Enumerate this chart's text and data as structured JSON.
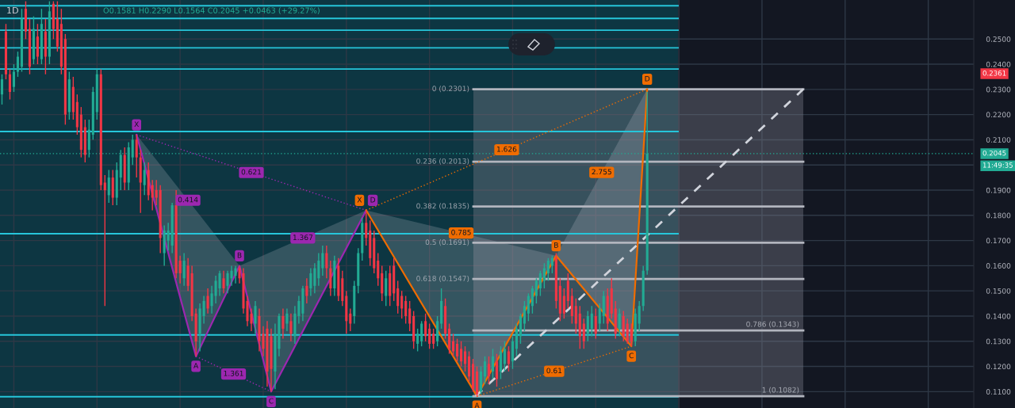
{
  "chart_data": {
    "type": "candlestick",
    "title": "1D",
    "categories": [
      null,
      null,
      null,
      null,
      null,
      null,
      null,
      null,
      null,
      null,
      null,
      null,
      null,
      null,
      null,
      null,
      null,
      null,
      null,
      null,
      null,
      null,
      null,
      null,
      null,
      null,
      null,
      null,
      null,
      null,
      null,
      null,
      null,
      null,
      null,
      null,
      null,
      null,
      null,
      null,
      null,
      null,
      null,
      null,
      null,
      null,
      null,
      null,
      null,
      null,
      null,
      null,
      null,
      null,
      null,
      null,
      null,
      null,
      null,
      null,
      null,
      null,
      null,
      null,
      null,
      null,
      null,
      null,
      null,
      null,
      null,
      null,
      null,
      null,
      null,
      null,
      null,
      null,
      null,
      null,
      null,
      null,
      null,
      null,
      null,
      null,
      null,
      null,
      null,
      null,
      null,
      null,
      null,
      null,
      null,
      null,
      null,
      null,
      null,
      null,
      null,
      null,
      null,
      null,
      null,
      null,
      null,
      null,
      null,
      null,
      null,
      null,
      null,
      null,
      null,
      null,
      null,
      null,
      null,
      null,
      null,
      null,
      null,
      null,
      null,
      null,
      null,
      null,
      null,
      null,
      null,
      null,
      null,
      null,
      null,
      null,
      null,
      null,
      null,
      null,
      null,
      null,
      null,
      null,
      null,
      null,
      null,
      null,
      null,
      null,
      null,
      null,
      null,
      null,
      null,
      null,
      null,
      null,
      null,
      null,
      null,
      null,
      null,
      null,
      null,
      null,
      null,
      null,
      null,
      null,
      null,
      null,
      null,
      null,
      null,
      null,
      null,
      null,
      null,
      null,
      null,
      null,
      null,
      null,
      null,
      null,
      null,
      null,
      null,
      null,
      null,
      null,
      null,
      null,
      null,
      null,
      null,
      null,
      null,
      null,
      null,
      null,
      null,
      null,
      null,
      null,
      null,
      null,
      null,
      null,
      null,
      null,
      null,
      null,
      null,
      null,
      null,
      null,
      null,
      null,
      null,
      null,
      null,
      null,
      null,
      null,
      null,
      null,
      null,
      null,
      null,
      null,
      null,
      null,
      null,
      null,
      null,
      null,
      null,
      null,
      null,
      null,
      null,
      null,
      null,
      null
    ],
    "ohlc": [
      [
        0.228,
        0.236,
        0.224,
        0.234
      ],
      [
        0.253,
        0.256,
        0.234,
        0.236
      ],
      [
        0.236,
        0.238,
        0.226,
        0.229
      ],
      [
        0.231,
        0.24,
        0.229,
        0.237
      ],
      [
        0.237,
        0.245,
        0.235,
        0.243
      ],
      [
        0.239,
        0.262,
        0.237,
        0.258
      ],
      [
        0.262,
        0.265,
        0.25,
        0.253
      ],
      [
        0.254,
        0.258,
        0.236,
        0.239
      ],
      [
        0.242,
        0.259,
        0.24,
        0.254
      ],
      [
        0.251,
        0.256,
        0.24,
        0.243
      ],
      [
        0.242,
        0.262,
        0.24,
        0.256
      ],
      [
        0.253,
        0.258,
        0.236,
        0.243
      ],
      [
        0.243,
        0.265,
        0.24,
        0.261
      ],
      [
        0.264,
        0.265,
        0.25,
        0.254
      ],
      [
        0.258,
        0.265,
        0.245,
        0.247
      ],
      [
        0.256,
        0.262,
        0.236,
        0.239
      ],
      [
        0.25,
        0.252,
        0.216,
        0.22
      ],
      [
        0.221,
        0.237,
        0.218,
        0.234
      ],
      [
        0.231,
        0.235,
        0.218,
        0.221
      ],
      [
        0.225,
        0.228,
        0.212,
        0.215
      ],
      [
        0.22,
        0.223,
        0.203,
        0.206
      ],
      [
        0.215,
        0.218,
        0.201,
        0.204
      ],
      [
        0.206,
        0.218,
        0.203,
        0.214
      ],
      [
        0.212,
        0.231,
        0.21,
        0.229
      ],
      [
        0.221,
        0.238,
        0.218,
        0.236
      ],
      [
        0.236,
        0.238,
        0.19,
        0.192
      ],
      [
        0.193,
        0.196,
        0.144,
        0.19
      ],
      [
        0.188,
        0.198,
        0.185,
        0.195
      ],
      [
        0.195,
        0.198,
        0.184,
        0.187
      ],
      [
        0.187,
        0.201,
        0.184,
        0.198
      ],
      [
        0.195,
        0.206,
        0.19,
        0.204
      ],
      [
        0.204,
        0.207,
        0.19,
        0.193
      ],
      [
        0.193,
        0.209,
        0.19,
        0.207
      ],
      [
        0.203,
        0.212,
        0.2,
        0.21
      ],
      [
        0.21,
        0.212,
        0.195,
        0.203
      ],
      [
        0.203,
        0.206,
        0.181,
        0.193
      ],
      [
        0.192,
        0.201,
        0.188,
        0.198
      ],
      [
        0.198,
        0.201,
        0.186,
        0.188
      ],
      [
        0.192,
        0.194,
        0.182,
        0.187
      ],
      [
        0.19,
        0.194,
        0.184,
        0.187
      ],
      [
        0.19,
        0.192,
        0.165,
        0.171
      ],
      [
        0.165,
        0.176,
        0.16,
        0.174
      ],
      [
        0.17,
        0.177,
        0.166,
        0.174
      ],
      [
        0.168,
        0.185,
        0.165,
        0.184
      ],
      [
        0.184,
        0.19,
        0.155,
        0.157
      ],
      [
        0.162,
        0.164,
        0.153,
        0.157
      ],
      [
        0.155,
        0.165,
        0.152,
        0.162
      ],
      [
        0.16,
        0.163,
        0.15,
        0.152
      ],
      [
        0.157,
        0.16,
        0.138,
        0.14
      ],
      [
        0.141,
        0.143,
        0.124,
        0.13
      ],
      [
        0.133,
        0.145,
        0.126,
        0.143
      ],
      [
        0.14,
        0.148,
        0.137,
        0.146
      ],
      [
        0.148,
        0.151,
        0.141,
        0.143
      ],
      [
        0.144,
        0.152,
        0.141,
        0.149
      ],
      [
        0.148,
        0.156,
        0.145,
        0.154
      ],
      [
        0.151,
        0.158,
        0.148,
        0.157
      ],
      [
        0.155,
        0.158,
        0.149,
        0.151
      ],
      [
        0.152,
        0.158,
        0.149,
        0.157
      ],
      [
        0.155,
        0.16,
        0.152,
        0.158
      ],
      [
        0.156,
        0.16,
        0.153,
        0.159
      ],
      [
        0.159,
        0.16,
        0.153,
        0.155
      ],
      [
        0.157,
        0.159,
        0.141,
        0.143
      ],
      [
        0.146,
        0.148,
        0.136,
        0.138
      ],
      [
        0.141,
        0.143,
        0.134,
        0.137
      ],
      [
        0.137,
        0.146,
        0.133,
        0.144
      ],
      [
        0.14,
        0.143,
        0.126,
        0.13
      ],
      [
        0.133,
        0.136,
        0.124,
        0.127
      ],
      [
        0.135,
        0.138,
        0.112,
        0.118
      ],
      [
        0.132,
        0.135,
        0.11,
        0.119
      ],
      [
        0.118,
        0.137,
        0.111,
        0.133
      ],
      [
        0.127,
        0.141,
        0.124,
        0.14
      ],
      [
        0.14,
        0.143,
        0.131,
        0.135
      ],
      [
        0.137,
        0.143,
        0.134,
        0.141
      ],
      [
        0.138,
        0.141,
        0.13,
        0.133
      ],
      [
        0.132,
        0.144,
        0.129,
        0.141
      ],
      [
        0.14,
        0.148,
        0.137,
        0.146
      ],
      [
        0.141,
        0.152,
        0.138,
        0.151
      ],
      [
        0.152,
        0.155,
        0.145,
        0.148
      ],
      [
        0.151,
        0.159,
        0.148,
        0.157
      ],
      [
        0.152,
        0.161,
        0.149,
        0.159
      ],
      [
        0.155,
        0.165,
        0.152,
        0.162
      ],
      [
        0.159,
        0.168,
        0.156,
        0.165
      ],
      [
        0.165,
        0.168,
        0.155,
        0.159
      ],
      [
        0.159,
        0.162,
        0.148,
        0.151
      ],
      [
        0.151,
        0.164,
        0.148,
        0.162
      ],
      [
        0.16,
        0.163,
        0.146,
        0.148
      ],
      [
        0.155,
        0.158,
        0.144,
        0.146
      ],
      [
        0.148,
        0.15,
        0.133,
        0.138
      ],
      [
        0.141,
        0.143,
        0.134,
        0.137
      ],
      [
        0.14,
        0.154,
        0.137,
        0.152
      ],
      [
        0.152,
        0.167,
        0.149,
        0.165
      ],
      [
        0.165,
        0.179,
        0.162,
        0.177
      ],
      [
        0.177,
        0.182,
        0.168,
        0.171
      ],
      [
        0.174,
        0.178,
        0.16,
        0.163
      ],
      [
        0.171,
        0.174,
        0.157,
        0.159
      ],
      [
        0.162,
        0.165,
        0.152,
        0.155
      ],
      [
        0.157,
        0.16,
        0.146,
        0.149
      ],
      [
        0.148,
        0.158,
        0.144,
        0.155
      ],
      [
        0.157,
        0.16,
        0.144,
        0.148
      ],
      [
        0.16,
        0.163,
        0.146,
        0.149
      ],
      [
        0.151,
        0.154,
        0.141,
        0.144
      ],
      [
        0.148,
        0.15,
        0.139,
        0.143
      ],
      [
        0.146,
        0.148,
        0.137,
        0.14
      ],
      [
        0.143,
        0.146,
        0.134,
        0.137
      ],
      [
        0.14,
        0.142,
        0.127,
        0.13
      ],
      [
        0.129,
        0.135,
        0.126,
        0.133
      ],
      [
        0.13,
        0.138,
        0.128,
        0.137
      ],
      [
        0.138,
        0.141,
        0.13,
        0.132
      ],
      [
        0.135,
        0.137,
        0.127,
        0.129
      ],
      [
        0.133,
        0.135,
        0.127,
        0.129
      ],
      [
        0.13,
        0.14,
        0.128,
        0.138
      ],
      [
        0.137,
        0.151,
        0.135,
        0.146
      ],
      [
        0.144,
        0.147,
        0.131,
        0.133
      ],
      [
        0.135,
        0.137,
        0.125,
        0.127
      ],
      [
        0.13,
        0.133,
        0.124,
        0.126
      ],
      [
        0.129,
        0.131,
        0.122,
        0.124
      ],
      [
        0.127,
        0.13,
        0.12,
        0.122
      ],
      [
        0.126,
        0.128,
        0.118,
        0.121
      ],
      [
        0.124,
        0.126,
        0.114,
        0.116
      ],
      [
        0.121,
        0.123,
        0.11,
        0.111
      ],
      [
        0.118,
        0.12,
        0.108,
        0.109
      ],
      [
        0.11,
        0.12,
        0.109,
        0.118
      ],
      [
        0.116,
        0.124,
        0.113,
        0.122
      ],
      [
        0.121,
        0.124,
        0.113,
        0.116
      ],
      [
        0.118,
        0.127,
        0.115,
        0.124
      ],
      [
        0.122,
        0.125,
        0.112,
        0.115
      ],
      [
        0.118,
        0.128,
        0.115,
        0.126
      ],
      [
        0.121,
        0.13,
        0.118,
        0.127
      ],
      [
        0.126,
        0.128,
        0.118,
        0.121
      ],
      [
        0.122,
        0.132,
        0.119,
        0.13
      ],
      [
        0.127,
        0.137,
        0.124,
        0.135
      ],
      [
        0.132,
        0.141,
        0.129,
        0.14
      ],
      [
        0.137,
        0.146,
        0.134,
        0.144
      ],
      [
        0.141,
        0.149,
        0.138,
        0.148
      ],
      [
        0.144,
        0.152,
        0.141,
        0.151
      ],
      [
        0.148,
        0.155,
        0.145,
        0.154
      ],
      [
        0.151,
        0.158,
        0.148,
        0.157
      ],
      [
        0.154,
        0.161,
        0.151,
        0.159
      ],
      [
        0.157,
        0.163,
        0.154,
        0.162
      ],
      [
        0.16,
        0.164,
        0.157,
        0.163
      ],
      [
        0.163,
        0.165,
        0.143,
        0.146
      ],
      [
        0.152,
        0.155,
        0.138,
        0.141
      ],
      [
        0.148,
        0.151,
        0.139,
        0.141
      ],
      [
        0.154,
        0.157,
        0.143,
        0.146
      ],
      [
        0.148,
        0.151,
        0.137,
        0.14
      ],
      [
        0.144,
        0.147,
        0.133,
        0.137
      ],
      [
        0.141,
        0.144,
        0.127,
        0.132
      ],
      [
        0.137,
        0.139,
        0.127,
        0.13
      ],
      [
        0.133,
        0.142,
        0.13,
        0.14
      ],
      [
        0.135,
        0.144,
        0.132,
        0.141
      ],
      [
        0.14,
        0.143,
        0.131,
        0.133
      ],
      [
        0.137,
        0.145,
        0.134,
        0.143
      ],
      [
        0.14,
        0.15,
        0.137,
        0.148
      ],
      [
        0.148,
        0.151,
        0.134,
        0.137
      ],
      [
        0.151,
        0.155,
        0.139,
        0.141
      ],
      [
        0.143,
        0.146,
        0.131,
        0.133
      ],
      [
        0.135,
        0.143,
        0.132,
        0.141
      ],
      [
        0.14,
        0.142,
        0.13,
        0.132
      ],
      [
        0.137,
        0.139,
        0.129,
        0.13
      ],
      [
        0.135,
        0.137,
        0.128,
        0.13
      ],
      [
        0.13,
        0.143,
        0.128,
        0.141
      ],
      [
        0.137,
        0.146,
        0.134,
        0.144
      ],
      [
        0.144,
        0.16,
        0.142,
        0.158
      ],
      [
        0.1581,
        0.229,
        0.1564,
        0.2045
      ],
      null,
      null,
      null,
      null,
      null,
      null,
      null,
      null,
      null,
      null,
      null,
      null,
      null,
      null,
      null,
      null,
      null,
      null,
      null,
      null,
      null,
      null,
      null,
      null,
      null,
      null,
      null,
      null,
      null,
      null,
      null,
      null,
      null,
      null,
      null,
      null,
      null,
      null,
      null,
      null,
      null,
      null,
      null,
      null,
      null,
      null,
      null,
      null,
      null,
      null,
      null,
      null,
      null,
      null,
      null,
      null,
      null,
      null,
      null,
      null,
      null,
      null,
      null,
      null,
      null,
      null,
      null,
      null,
      null,
      null,
      null,
      null,
      null,
      null,
      null,
      null,
      null,
      null,
      null,
      null,
      null,
      null
    ],
    "colors": [
      "#22ab94",
      "#f23645",
      "#f23645",
      "#22ab94",
      "#22ab94",
      "#22ab94",
      "#f23645",
      "#f23645",
      "#22ab94",
      "#f23645",
      "#22ab94",
      "#f23645",
      "#22ab94",
      "#f23645",
      "#f23645",
      "#f23645",
      "#f23645",
      "#22ab94",
      "#f23645",
      "#f23645",
      "#f23645",
      "#f23645",
      "#22ab94",
      "#22ab94",
      "#22ab94",
      "#f23645",
      "#f23645",
      "#22ab94",
      "#f23645",
      "#22ab94",
      "#22ab94",
      "#f23645",
      "#22ab94",
      "#22ab94",
      "#f23645",
      "#f23645",
      "#22ab94",
      "#f23645",
      "#f23645",
      "#f23645",
      "#f23645",
      "#22ab94",
      "#22ab94",
      "#22ab94",
      "#f23645",
      "#f23645",
      "#22ab94",
      "#f23645",
      "#f23645",
      "#f23645",
      "#22ab94",
      "#22ab94",
      "#f23645",
      "#22ab94",
      "#22ab94",
      "#22ab94",
      "#f23645",
      "#22ab94",
      "#22ab94",
      "#22ab94",
      "#f23645",
      "#f23645",
      "#f23645",
      "#f23645",
      "#22ab94",
      "#f23645",
      "#f23645",
      "#f23645",
      "#f23645",
      "#22ab94",
      "#22ab94",
      "#f23645",
      "#22ab94",
      "#f23645",
      "#22ab94",
      "#22ab94",
      "#22ab94",
      "#f23645",
      "#22ab94",
      "#22ab94",
      "#22ab94",
      "#22ab94",
      "#f23645",
      "#f23645",
      "#22ab94",
      "#f23645",
      "#f23645",
      "#f23645",
      "#f23645",
      "#22ab94",
      "#22ab94",
      "#22ab94",
      "#f23645",
      "#f23645",
      "#f23645",
      "#f23645",
      "#f23645",
      "#22ab94",
      "#f23645",
      "#f23645",
      "#f23645",
      "#f23645",
      "#f23645",
      "#f23645",
      "#f23645",
      "#22ab94",
      "#22ab94",
      "#f23645",
      "#f23645",
      "#f23645",
      "#22ab94",
      "#22ab94",
      "#f23645",
      "#f23645",
      "#f23645",
      "#f23645",
      "#f23645",
      "#f23645",
      "#f23645",
      "#f23645",
      "#f23645",
      "#22ab94",
      "#22ab94",
      "#f23645",
      "#22ab94",
      "#f23645",
      "#22ab94",
      "#22ab94",
      "#f23645",
      "#22ab94",
      "#22ab94",
      "#22ab94",
      "#22ab94",
      "#22ab94",
      "#22ab94",
      "#22ab94",
      "#22ab94",
      "#22ab94",
      "#22ab94",
      "#22ab94",
      "#f23645",
      "#f23645",
      "#f23645",
      "#f23645",
      "#f23645",
      "#f23645",
      "#f23645",
      "#f23645",
      "#22ab94",
      "#22ab94",
      "#f23645",
      "#22ab94",
      "#22ab94",
      "#f23645",
      "#f23645",
      "#f23645",
      "#22ab94",
      "#f23645",
      "#f23645",
      "#f23645",
      "#22ab94",
      "#22ab94",
      "#22ab94",
      "#22ab94",
      null,
      null,
      null,
      null,
      null,
      null,
      null,
      null,
      null,
      null,
      null,
      null,
      null,
      null,
      null,
      null,
      null,
      null,
      null,
      null,
      null,
      null,
      null,
      null,
      null,
      null,
      null,
      null,
      null,
      null,
      null,
      null,
      null,
      null,
      null,
      null,
      null,
      null,
      null,
      null,
      null,
      null,
      null,
      null,
      null,
      null,
      null,
      null,
      null,
      null,
      null,
      null,
      null,
      null,
      null,
      null,
      null,
      null,
      null,
      null,
      null,
      null,
      null,
      null,
      null,
      null,
      null,
      null,
      null,
      null,
      null,
      null,
      null,
      null,
      null,
      null,
      null,
      null,
      null,
      null,
      null,
      null
    ],
    "series": [
      {
        "type": "line",
        "color": "#9c27b0",
        "values": [
          null,
          null,
          null,
          null,
          null,
          null,
          null,
          null,
          null,
          null,
          null,
          null,
          null,
          null,
          null,
          null,
          null,
          null,
          null,
          null,
          null,
          null,
          null,
          null,
          null,
          null,
          null,
          null,
          null,
          null,
          null,
          null,
          null,
          null,
          0.212,
          null,
          null,
          null,
          null,
          null,
          null,
          null,
          null,
          null,
          null,
          null,
          null,
          null,
          null,
          0.124,
          null,
          null,
          null,
          null,
          null,
          null,
          null,
          null,
          null,
          null,
          0.16,
          null,
          null,
          null,
          null,
          null,
          null,
          null,
          0.11,
          null,
          null,
          null,
          null,
          null,
          null,
          null,
          null,
          null,
          null,
          null,
          null,
          null,
          null,
          null,
          null,
          null,
          null,
          null,
          null,
          null,
          null,
          null,
          0.182,
          null,
          null,
          null,
          null,
          null,
          null,
          null,
          null,
          null,
          null,
          null,
          null,
          null,
          null,
          null,
          null,
          null,
          null,
          null,
          null,
          null,
          null,
          null,
          null,
          null,
          null,
          null,
          null,
          null,
          null,
          null,
          null,
          null,
          null,
          null,
          null,
          null,
          null,
          null,
          null,
          null,
          null,
          null,
          null,
          null,
          null,
          null,
          null,
          null,
          null,
          null,
          null,
          null,
          null,
          null,
          null,
          null,
          null,
          null,
          null,
          null,
          null,
          null,
          null,
          null,
          null,
          null,
          null,
          null,
          null,
          null,
          null,
          null,
          null,
          null,
          null,
          null,
          null,
          null,
          null,
          null,
          null,
          null,
          null,
          null,
          null,
          null,
          null,
          null,
          null,
          null,
          null,
          null,
          null,
          null,
          null,
          null,
          null,
          null,
          null,
          null,
          null,
          null,
          null,
          null,
          null,
          null,
          null,
          null,
          null,
          null,
          null,
          null,
          null,
          null,
          null,
          null,
          null,
          null,
          null,
          null,
          null,
          null,
          null,
          null,
          null,
          null,
          null,
          null,
          null,
          null,
          null,
          null,
          null,
          null,
          null,
          null,
          null,
          null,
          null,
          null,
          null,
          null,
          null,
          null,
          null,
          null,
          null,
          null,
          null,
          null,
          null,
          null
        ],
        "value_labels": [
          null,
          null,
          null,
          null,
          null,
          null,
          null,
          null,
          null,
          null,
          null,
          null,
          null,
          null,
          null,
          null,
          null,
          null,
          null,
          null,
          null,
          null,
          null,
          null,
          null,
          null,
          null,
          null,
          null,
          null,
          null,
          null,
          null,
          null,
          "X",
          null,
          null,
          null,
          null,
          null,
          null,
          null,
          null,
          null,
          null,
          null,
          null,
          null,
          null,
          "A",
          null,
          null,
          null,
          null,
          null,
          null,
          null,
          null,
          null,
          null,
          "B",
          null,
          null,
          null,
          null,
          null,
          null,
          null,
          "C",
          null,
          null,
          null,
          null,
          null,
          null,
          null,
          null,
          null,
          null,
          null,
          null,
          null,
          null,
          null,
          null,
          null,
          null,
          null,
          null,
          null,
          null,
          null,
          "D",
          null,
          null,
          null,
          null,
          null,
          null,
          null,
          null,
          null,
          null,
          null,
          null,
          null,
          null,
          null,
          null,
          null,
          null,
          null,
          null,
          null,
          null,
          null,
          null,
          null,
          null,
          null,
          null,
          null,
          null,
          null,
          null,
          null,
          null,
          null,
          null,
          null,
          null,
          null,
          null,
          null,
          null,
          null,
          null,
          null,
          null,
          null,
          null,
          null,
          null,
          null,
          null,
          null,
          null,
          null,
          null,
          null,
          null,
          null,
          null,
          null,
          null,
          null,
          null,
          null,
          null,
          null,
          null,
          null,
          null,
          null,
          null,
          null,
          null,
          null,
          null,
          null,
          null,
          null,
          null,
          null,
          null,
          null,
          null,
          null,
          null,
          null,
          null,
          null,
          null,
          null,
          null,
          null,
          null,
          null,
          null,
          null,
          null,
          null,
          null,
          null,
          null,
          null,
          null,
          null,
          null,
          null,
          null,
          null,
          null,
          null,
          null,
          null,
          null,
          null,
          null,
          null,
          null,
          null,
          null,
          null,
          null,
          null,
          null,
          null,
          null,
          null,
          null,
          null,
          null,
          null,
          null,
          null,
          null,
          null,
          null,
          null,
          null,
          null,
          null,
          null,
          null,
          null,
          null,
          null,
          null,
          null,
          null,
          null,
          null,
          null,
          null,
          null
        ]
      },
      {
        "type": "line",
        "color": "#ef6c00",
        "values": [
          null,
          null,
          null,
          null,
          null,
          null,
          null,
          null,
          null,
          null,
          null,
          null,
          null,
          null,
          null,
          null,
          null,
          null,
          null,
          null,
          null,
          null,
          null,
          null,
          null,
          null,
          null,
          null,
          null,
          null,
          null,
          null,
          null,
          null,
          null,
          null,
          null,
          null,
          null,
          null,
          null,
          null,
          null,
          null,
          null,
          null,
          null,
          null,
          null,
          null,
          null,
          null,
          null,
          null,
          null,
          null,
          null,
          null,
          null,
          null,
          null,
          null,
          null,
          null,
          null,
          null,
          null,
          null,
          null,
          null,
          null,
          null,
          null,
          null,
          null,
          null,
          null,
          null,
          null,
          null,
          null,
          null,
          null,
          null,
          null,
          null,
          null,
          null,
          null,
          null,
          null,
          null,
          0.182,
          null,
          null,
          null,
          null,
          null,
          null,
          null,
          null,
          null,
          null,
          null,
          null,
          null,
          null,
          null,
          null,
          null,
          null,
          null,
          null,
          null,
          null,
          null,
          null,
          null,
          null,
          null,
          0.1082,
          null,
          null,
          null,
          null,
          null,
          null,
          null,
          null,
          null,
          null,
          null,
          null,
          null,
          null,
          null,
          null,
          null,
          null,
          null,
          0.164,
          null,
          null,
          null,
          null,
          null,
          null,
          null,
          null,
          null,
          null,
          null,
          null,
          null,
          null,
          null,
          null,
          null,
          null,
          0.128,
          null,
          null,
          null,
          0.2301,
          null,
          null,
          null,
          null,
          null,
          null,
          null,
          null,
          null,
          null,
          null,
          null,
          null,
          null,
          null,
          null,
          null,
          null,
          null,
          null,
          null,
          null,
          null,
          null,
          null,
          null,
          null,
          null,
          null,
          null,
          null,
          null,
          null,
          null,
          null,
          null,
          null,
          null,
          null,
          null,
          null,
          null,
          null,
          null,
          null,
          null,
          null,
          null,
          null,
          null,
          null,
          null,
          null,
          null,
          null,
          null,
          null,
          null,
          null,
          null,
          null,
          null,
          null,
          null,
          null,
          null,
          null,
          null,
          null,
          null,
          null,
          null,
          null,
          null,
          null,
          null,
          null,
          null,
          null,
          null,
          null,
          null
        ],
        "value_labels": [
          null,
          null,
          null,
          null,
          null,
          null,
          null,
          null,
          null,
          null,
          null,
          null,
          null,
          null,
          null,
          null,
          null,
          null,
          null,
          null,
          null,
          null,
          null,
          null,
          null,
          null,
          null,
          null,
          null,
          null,
          null,
          null,
          null,
          null,
          null,
          null,
          null,
          null,
          null,
          null,
          null,
          null,
          null,
          null,
          null,
          null,
          null,
          null,
          null,
          null,
          null,
          null,
          null,
          null,
          null,
          null,
          null,
          null,
          null,
          null,
          null,
          null,
          null,
          null,
          null,
          null,
          null,
          null,
          null,
          null,
          null,
          null,
          null,
          null,
          null,
          null,
          null,
          null,
          null,
          null,
          null,
          null,
          null,
          null,
          null,
          null,
          null,
          null,
          null,
          null,
          null,
          null,
          "X",
          null,
          null,
          null,
          null,
          null,
          null,
          null,
          null,
          null,
          null,
          null,
          null,
          null,
          null,
          null,
          null,
          null,
          null,
          null,
          null,
          null,
          null,
          null,
          null,
          null,
          null,
          null,
          "A",
          null,
          null,
          null,
          null,
          null,
          null,
          null,
          null,
          null,
          null,
          null,
          null,
          null,
          null,
          null,
          null,
          null,
          null,
          null,
          "B",
          null,
          null,
          null,
          null,
          null,
          null,
          null,
          null,
          null,
          null,
          null,
          null,
          null,
          null,
          null,
          null,
          null,
          null,
          "C",
          null,
          null,
          null,
          "D",
          null,
          null,
          null,
          null,
          null,
          null,
          null,
          null,
          null,
          null,
          null,
          null,
          null,
          null,
          null,
          null,
          null,
          null,
          null,
          null,
          null,
          null,
          null,
          null,
          null,
          null,
          null,
          null,
          null,
          null,
          null,
          null,
          null,
          null,
          null,
          null,
          null,
          null,
          null,
          null,
          null,
          null,
          null,
          null,
          null,
          null,
          null,
          null,
          null,
          null,
          null,
          null,
          null,
          null,
          null,
          null,
          null,
          null,
          null,
          null,
          null,
          null,
          null,
          null,
          null,
          null,
          null,
          null,
          null,
          null,
          null,
          null,
          null,
          null,
          null,
          null,
          null,
          null,
          null,
          null,
          null,
          null
        ]
      }
    ],
    "ylim": [
      0.1035,
      0.2655
    ],
    "yticks": [
      {
        "value": 0.11,
        "label": "0.1100"
      },
      {
        "value": 0.12,
        "label": "0.1200"
      },
      {
        "value": 0.13,
        "label": "0.1300"
      },
      {
        "value": 0.14,
        "label": "0.1400"
      },
      {
        "value": 0.15,
        "label": "0.1500"
      },
      {
        "value": 0.16,
        "label": "0.1600"
      },
      {
        "value": 0.17,
        "label": "0.1700"
      },
      {
        "value": 0.18,
        "label": "0.1800"
      },
      {
        "value": 0.19,
        "label": "0.1900"
      },
      {
        "value": 0.2,
        "label": null
      },
      {
        "value": 0.21,
        "label": "0.2100"
      },
      {
        "value": 0.22,
        "label": "0.2200"
      },
      {
        "value": 0.23,
        "label": "0.2300"
      },
      {
        "value": 0.24,
        "label": "0.2400"
      },
      {
        "value": 0.25,
        "label": "0.2500"
      }
    ],
    "tick_labels": "y",
    "grid": true,
    "ref_lines": [
      {
        "axis": "y",
        "value": 0.2632,
        "color": "#26c6da"
      },
      {
        "axis": "y",
        "value": 0.2582,
        "color": "#26c6da"
      },
      {
        "axis": "y",
        "value": 0.2535,
        "color": "#26c6da"
      },
      {
        "axis": "y",
        "value": 0.2465,
        "color": "#26c6da"
      },
      {
        "axis": "y",
        "value": 0.2381,
        "color": "#26c6da"
      },
      {
        "axis": "y",
        "value": 0.2133,
        "color": "#26c6da"
      },
      {
        "axis": "y",
        "value": 0.1727,
        "color": "#26c6da"
      },
      {
        "axis": "y",
        "value": 0.1325,
        "color": "#26c6da"
      },
      {
        "axis": "y",
        "value": 0.108,
        "color": "#26c6da"
      },
      {
        "axis": "y",
        "value": 0.2301,
        "label": "0 (0.2301)",
        "color": "#b2b5be"
      },
      {
        "axis": "y",
        "value": 0.2013,
        "label": "0.236 (0.2013)",
        "color": "#b2b5be"
      },
      {
        "axis": "y",
        "value": 0.1835,
        "label": "0.382 (0.1835)",
        "color": "#b2b5be"
      },
      {
        "axis": "y",
        "value": 0.1691,
        "label": "0.5 (0.1691)",
        "color": "#b2b5be"
      },
      {
        "axis": "y",
        "value": 0.1547,
        "label": "0.618 (0.1547)",
        "color": "#b2b5be"
      },
      {
        "axis": "y",
        "value": 0.1343,
        "label": "0.786 (0.1343)",
        "color": "#b2b5be"
      },
      {
        "axis": "y",
        "value": 0.1082,
        "label": "1 (0.1082)",
        "color": "#b2b5be"
      },
      {
        "axis": "y",
        "value": 0.2045,
        "label": "0.2045",
        "color": "#22ab94",
        "line_style": "dotted"
      }
    ],
    "bands": [
      {
        "axis": "y",
        "from": 0.1082,
        "to": 0.2301,
        "color": "#787b86"
      }
    ],
    "annotations": [
      "0.414",
      "0.621",
      "1.367",
      "1.361",
      "0.785",
      "1.626",
      "2.755",
      "0.61",
      "O0.1581 H0.2290 L0.1564 C0.2045 +0.0463 (+29.27%)",
      "11:49:35",
      "0.2361"
    ]
  }
}
